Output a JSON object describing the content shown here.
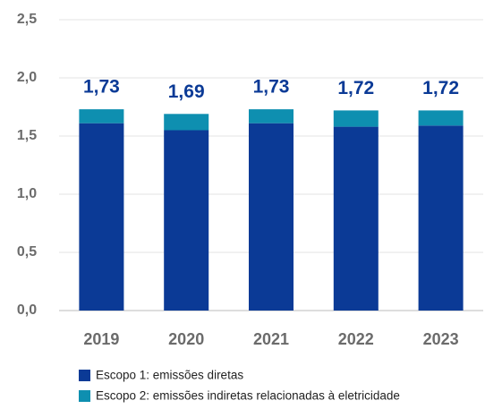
{
  "chart_data": {
    "type": "stacked_bar",
    "categories": [
      "2019",
      "2020",
      "2021",
      "2022",
      "2023"
    ],
    "series": [
      {
        "name": "Escopo 1: emissões diretas",
        "color": "#0b3a96",
        "values": [
          1.61,
          1.55,
          1.61,
          1.58,
          1.59
        ]
      },
      {
        "name": "Escopo 2: emissões indiretas relacionadas à eletricidade",
        "color": "#0e8fb0",
        "values": [
          0.12,
          0.14,
          0.12,
          0.14,
          0.13
        ]
      }
    ],
    "totals": [
      1.73,
      1.69,
      1.73,
      1.72,
      1.72
    ],
    "total_labels": [
      "1,73",
      "1,69",
      "1,73",
      "1,72",
      "1,72"
    ],
    "ylim": [
      0,
      2.5
    ],
    "yticks": [
      {
        "value": 0,
        "label": "0,0"
      },
      {
        "value": 0.5,
        "label": "0,5"
      },
      {
        "value": 1,
        "label": "1,0"
      },
      {
        "value": 1.5,
        "label": "1,5"
      },
      {
        "value": 2,
        "label": "2,0"
      },
      {
        "value": 2.5,
        "label": "2,5"
      }
    ],
    "grid": true
  }
}
